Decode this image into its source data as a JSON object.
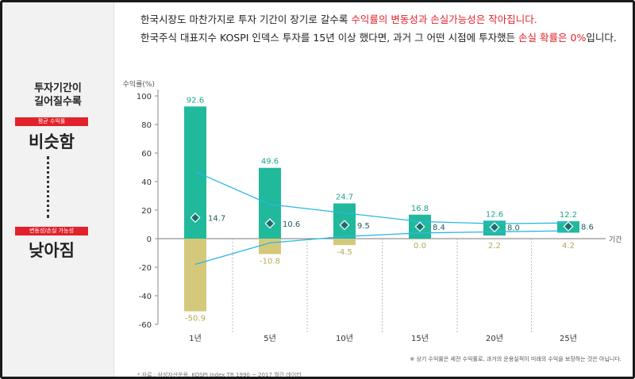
{
  "header": {
    "line1": {
      "pre": "한국시장도 마찬가지로 투자 기간이 장기로 갈수록 ",
      "highlight": "수익률의 변동성과 손실가능성은 작아집니다."
    },
    "line2": {
      "pre": "한국주식 대표지수 KOSPI 인덱스 투자를 15년 이상 했다면, 과거 그 어떤 시점에 투자했든 ",
      "highlight": "손실 확률은 0%",
      "post": "입니다."
    }
  },
  "side_panel": {
    "title_line1": "투자기간이",
    "title_line2": "길어질수록",
    "badge_top": "평균 수익률",
    "big_top": "비슷함",
    "badge_bottom": "변동성/손실 가능성",
    "big_bottom": "낮아짐"
  },
  "colors": {
    "green": "#21b99c",
    "olive": "#d4c97a",
    "line": "#2bb6e6",
    "marker": "#1c6e6c",
    "green_text": "#1ea58b",
    "olive_text": "#b5a855",
    "accent": "#e2222b"
  },
  "chart_data": {
    "type": "bar",
    "title": "",
    "ylabel": "수익률(%)",
    "xlabel": "기간",
    "ylim": [
      -60,
      100
    ],
    "yticks": [
      100,
      80,
      60,
      40,
      20,
      0,
      -20,
      -40,
      -60
    ],
    "categories": [
      "1년",
      "5년",
      "10년",
      "15년",
      "20년",
      "25년"
    ],
    "max_values": [
      92.6,
      49.6,
      24.7,
      16.8,
      12.6,
      12.2
    ],
    "min_values": [
      -50.9,
      -10.8,
      -4.5,
      0.0,
      2.2,
      4.2
    ],
    "max_labels": [
      "92.6",
      "49.6",
      "24.7",
      "16.8",
      "12.6",
      "12.2"
    ],
    "min_labels": [
      "-50.9",
      "-10.8",
      "-4.5",
      "0.0",
      "2.2",
      "4.2"
    ],
    "average": [
      14.7,
      10.6,
      9.5,
      8.4,
      8.0,
      8.6
    ],
    "average_labels": [
      "14.7",
      "10.6",
      "9.5",
      "8.4",
      "8.0",
      "8.6"
    ],
    "upper_line": [
      47,
      24,
      18,
      12,
      10.5,
      11
    ],
    "lower_line": [
      -18,
      -3,
      1.5,
      4,
      4.8,
      5.5
    ]
  },
  "footnote": "※ 상기 수익률은 세전 수익률로, 과거의 운용실적이 미래의 수익을 보장하는 것은 아닙니다.",
  "source": "* 자료 : 삼성자산운용, KOSPI Index TR 1990 ~ 2017 월간 데이터"
}
